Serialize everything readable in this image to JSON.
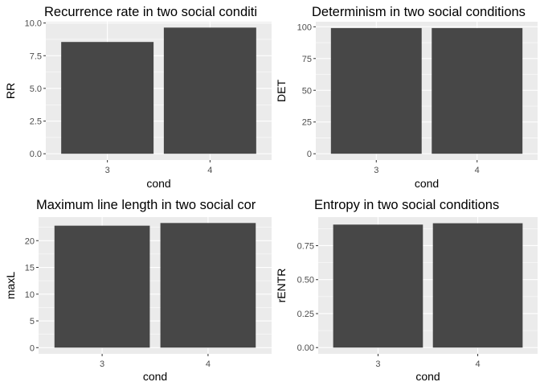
{
  "colors": {
    "panel_background": "#ebebeb",
    "grid_major": "#ffffff",
    "bar_fill": "#474747",
    "tick_text": "#4d4d4d",
    "tick_mark": "#333333"
  },
  "chart_data": [
    {
      "type": "bar",
      "title": "Recurrence rate in two social conditi",
      "xlabel": "cond",
      "ylabel": "RR",
      "categories": [
        "3",
        "4"
      ],
      "values": [
        8.55,
        9.65
      ],
      "ylim": [
        -0.48,
        10.1
      ],
      "yticks": [
        0,
        2.5,
        5,
        7.5,
        10
      ],
      "ytick_labels": [
        "0.0",
        "2.5",
        "5.0",
        "7.5",
        "10.0"
      ],
      "grid": true
    },
    {
      "type": "bar",
      "title": "Determinism in two social conditions",
      "xlabel": "cond",
      "ylabel": "DET",
      "categories": [
        "3",
        "4"
      ],
      "values": [
        99,
        99
      ],
      "ylim": [
        -4.95,
        104.0
      ],
      "yticks": [
        0,
        25,
        50,
        75,
        100
      ],
      "ytick_labels": [
        "0",
        "25",
        "50",
        "75",
        "100"
      ],
      "grid": true
    },
    {
      "type": "bar",
      "title": "Maximum line length in two social cor",
      "xlabel": "cond",
      "ylabel": "maxL",
      "categories": [
        "3",
        "4"
      ],
      "values": [
        22.8,
        23.3
      ],
      "ylim": [
        -1.16,
        24.4
      ],
      "yticks": [
        0,
        5,
        10,
        15,
        20
      ],
      "ytick_labels": [
        "0",
        "5",
        "10",
        "15",
        "20"
      ],
      "grid": true
    },
    {
      "type": "bar",
      "title": "Entropy in two social conditions",
      "xlabel": "cond",
      "ylabel": "rENTR",
      "categories": [
        "3",
        "4"
      ],
      "values": [
        0.905,
        0.915
      ],
      "ylim": [
        -0.046,
        0.96
      ],
      "yticks": [
        0,
        0.25,
        0.5,
        0.75
      ],
      "ytick_labels": [
        "0.00",
        "0.25",
        "0.50",
        "0.75"
      ],
      "grid": true
    }
  ]
}
